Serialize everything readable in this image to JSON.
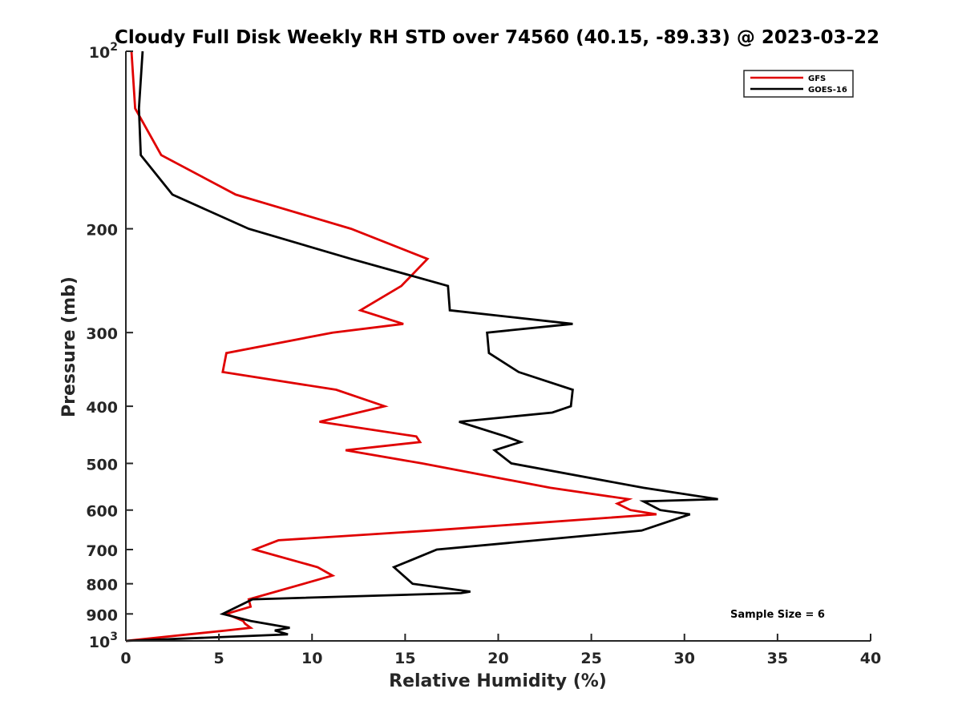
{
  "chart_data": {
    "type": "line",
    "title": "Cloudy Full Disk Weekly RH STD over 74560 (40.15, -89.33) @ 2023-03-22",
    "xlabel": "Relative Humidity (%)",
    "ylabel": "Pressure (mb)",
    "xlim": [
      0,
      40
    ],
    "ylim": [
      1000,
      100
    ],
    "yscale": "log",
    "y_reversed": true,
    "x_ticks": [
      "0",
      "5",
      "10",
      "15",
      "20",
      "25",
      "30",
      "35",
      "40"
    ],
    "y_ticks": [
      {
        "value": 100,
        "label": "10",
        "sup": "2"
      },
      {
        "value": 200,
        "label": "200"
      },
      {
        "value": 300,
        "label": "300"
      },
      {
        "value": 400,
        "label": "400"
      },
      {
        "value": 500,
        "label": "500"
      },
      {
        "value": 600,
        "label": "600"
      },
      {
        "value": 700,
        "label": "700"
      },
      {
        "value": 800,
        "label": "800"
      },
      {
        "value": 900,
        "label": "900"
      },
      {
        "value": 1000,
        "label": "10",
        "sup": "3"
      }
    ],
    "grid": false,
    "legend_position": "top-right",
    "annotation": "Sample Size = 6",
    "series": [
      {
        "name": "GFS",
        "color": "#e00000",
        "points": [
          [
            0.3,
            100
          ],
          [
            0.5,
            125
          ],
          [
            1.9,
            150
          ],
          [
            5.9,
            175
          ],
          [
            12.1,
            200
          ],
          [
            16.2,
            225
          ],
          [
            14.8,
            250
          ],
          [
            12.6,
            275
          ],
          [
            14.9,
            290
          ],
          [
            11.1,
            300
          ],
          [
            5.4,
            325
          ],
          [
            5.2,
            350
          ],
          [
            11.3,
            375
          ],
          [
            13.9,
            400
          ],
          [
            13.9,
            400
          ],
          [
            10.4,
            425
          ],
          [
            15.6,
            450
          ],
          [
            15.8,
            460
          ],
          [
            11.8,
            475
          ],
          [
            15.9,
            500
          ],
          [
            22.8,
            550
          ],
          [
            27.0,
            575
          ],
          [
            26.4,
            585
          ],
          [
            27.1,
            600
          ],
          [
            28.5,
            610
          ],
          [
            16.3,
            650
          ],
          [
            8.2,
            675
          ],
          [
            6.9,
            700
          ],
          [
            10.3,
            750
          ],
          [
            11.1,
            775
          ],
          [
            6.6,
            850
          ],
          [
            6.7,
            875
          ],
          [
            5.4,
            900
          ],
          [
            6.3,
            925
          ],
          [
            6.4,
            935
          ],
          [
            6.7,
            950
          ],
          [
            5.4,
            960
          ],
          [
            0.0,
            1000
          ]
        ]
      },
      {
        "name": "GOES-16",
        "color": "#000000",
        "points": [
          [
            0.9,
            100
          ],
          [
            0.7,
            125
          ],
          [
            0.8,
            150
          ],
          [
            2.5,
            175
          ],
          [
            6.6,
            200
          ],
          [
            12.1,
            225
          ],
          [
            17.3,
            250
          ],
          [
            17.4,
            275
          ],
          [
            24.0,
            290
          ],
          [
            19.4,
            300
          ],
          [
            19.5,
            325
          ],
          [
            21.1,
            350
          ],
          [
            24.0,
            375
          ],
          [
            23.9,
            400
          ],
          [
            22.9,
            410
          ],
          [
            17.9,
            425
          ],
          [
            20.4,
            450
          ],
          [
            21.2,
            460
          ],
          [
            19.8,
            475
          ],
          [
            20.7,
            500
          ],
          [
            27.8,
            550
          ],
          [
            31.8,
            575
          ],
          [
            27.8,
            580
          ],
          [
            28.7,
            600
          ],
          [
            30.3,
            610
          ],
          [
            27.7,
            650
          ],
          [
            16.7,
            700
          ],
          [
            14.4,
            750
          ],
          [
            15.4,
            800
          ],
          [
            18.5,
            825
          ],
          [
            18.0,
            830
          ],
          [
            6.8,
            850
          ],
          [
            5.2,
            900
          ],
          [
            6.7,
            925
          ],
          [
            8.8,
            950
          ],
          [
            8.0,
            960
          ],
          [
            8.7,
            975
          ],
          [
            0.0,
            1000
          ]
        ]
      }
    ]
  }
}
